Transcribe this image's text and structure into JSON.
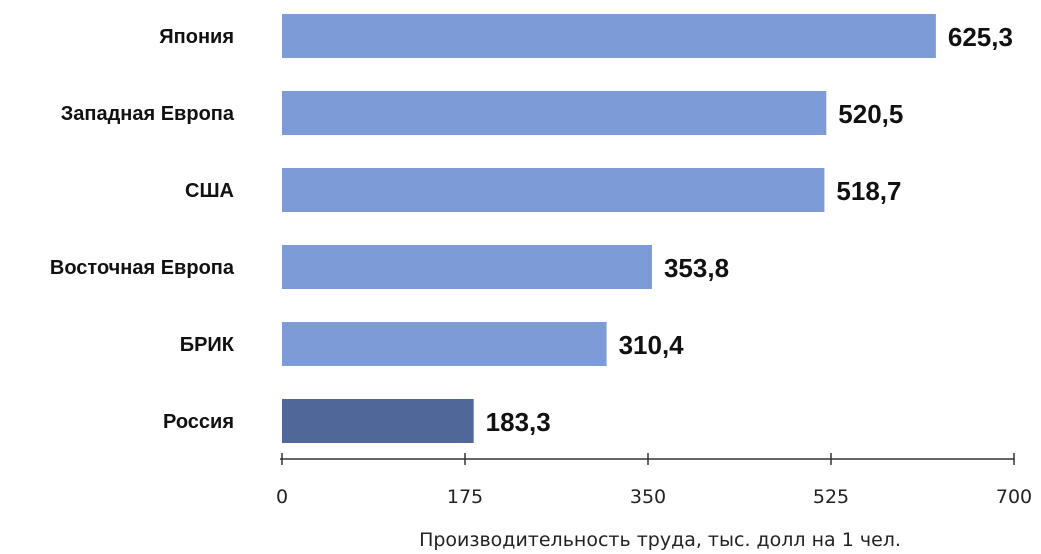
{
  "chart_data": {
    "type": "bar",
    "orientation": "horizontal",
    "title": "",
    "categories": [
      "Япония",
      "Западная Европа",
      "США",
      "Восточная Европа",
      "БРИК",
      "Россия"
    ],
    "values": [
      625.3,
      520.5,
      518.7,
      353.8,
      310.4,
      183.3
    ],
    "value_labels": [
      "625,3",
      "520,5",
      "518,7",
      "353,8",
      "310,4",
      "183,3"
    ],
    "xlabel": "Производительность труда, тыс. долл на 1 чел.",
    "ylabel": "",
    "xlim": [
      0,
      700
    ],
    "x_ticks": [
      0,
      175,
      350,
      525,
      700
    ],
    "x_tick_labels": [
      "0",
      "175",
      "350",
      "525",
      "700"
    ],
    "grid": false,
    "legend": "none",
    "colors": {
      "bar": "#7d9bd6",
      "highlight_bar": "#4f6899",
      "highlight_category": "Россия",
      "axis": "#333333"
    }
  }
}
